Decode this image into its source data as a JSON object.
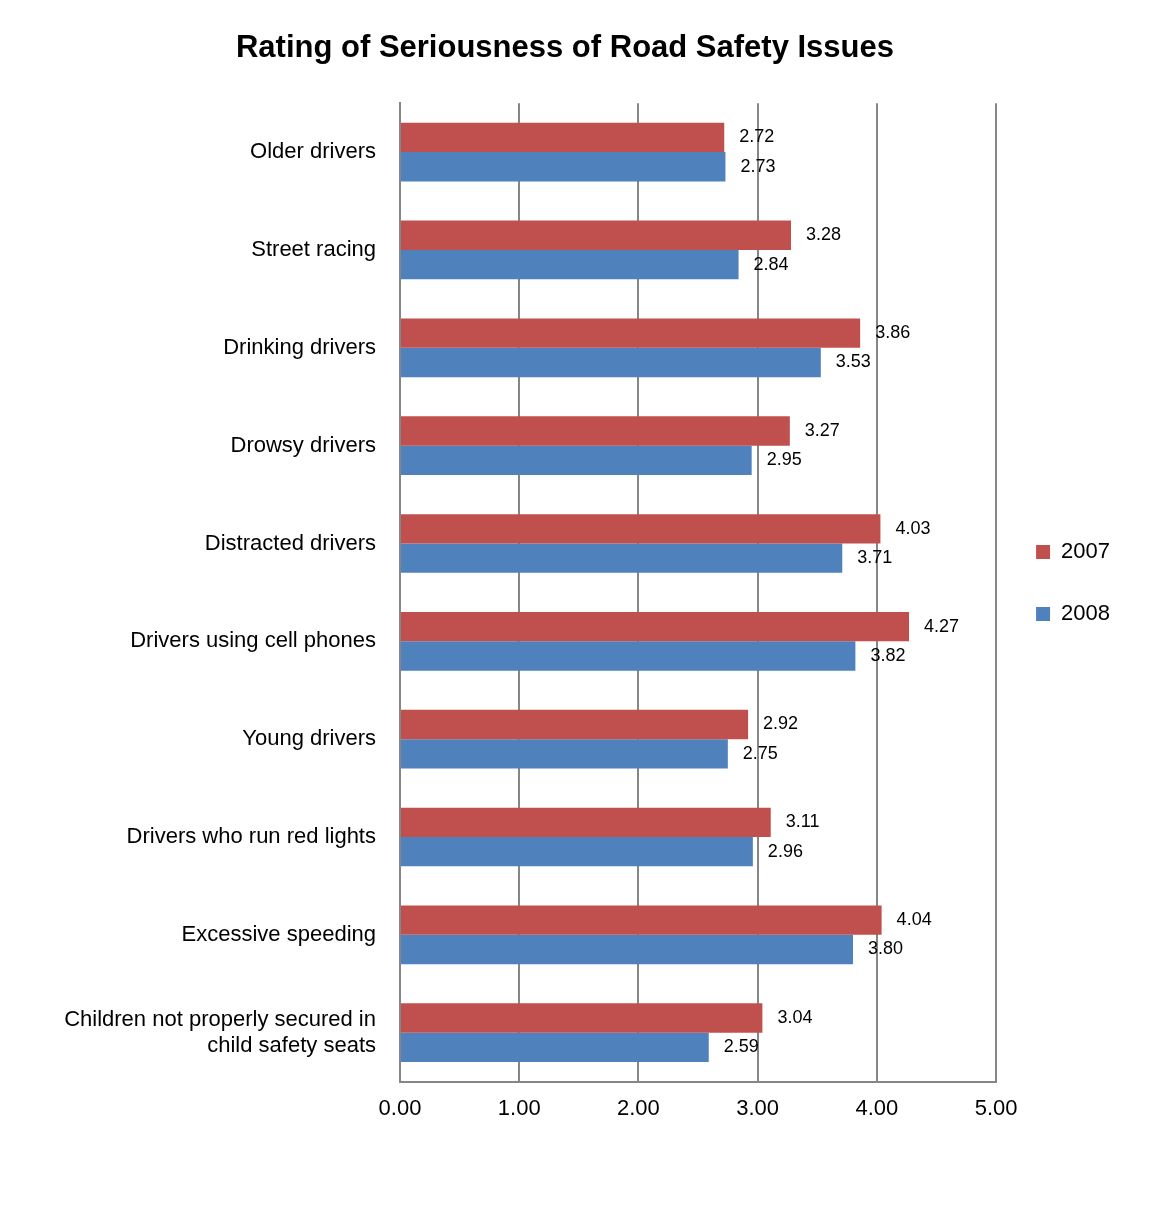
{
  "chart_data": {
    "type": "bar",
    "orientation": "horizontal",
    "title": "Rating of Seriousness of Road Safety Issues",
    "categories": [
      "Older drivers",
      "Street racing",
      "Drinking drivers",
      "Drowsy drivers",
      "Distracted drivers",
      "Drivers using cell phones",
      "Young drivers",
      "Drivers who run red lights",
      "Excessive speeding",
      "Children not properly secured in child safety seats"
    ],
    "series": [
      {
        "name": "2007",
        "color": "#c0504d",
        "values": [
          2.72,
          3.28,
          3.86,
          3.27,
          4.03,
          4.27,
          2.92,
          3.11,
          4.04,
          3.04
        ],
        "value_labels": [
          "2.72",
          "3.28",
          "3.86",
          "3.27",
          "4.03",
          "4.27",
          "2.92",
          "3.11",
          "4.04",
          "3.04"
        ]
      },
      {
        "name": "2008",
        "color": "#4f81bd",
        "values": [
          2.73,
          2.84,
          3.53,
          2.95,
          3.71,
          3.82,
          2.75,
          2.96,
          3.8,
          2.59
        ],
        "value_labels": [
          "2.73",
          "2.84",
          "3.53",
          "2.95",
          "3.71",
          "3.82",
          "2.75",
          "2.96",
          "3.80",
          "2.59"
        ]
      }
    ],
    "xlim": [
      0,
      5
    ],
    "xticks": [
      {
        "value": 0,
        "label": "0.00"
      },
      {
        "value": 1,
        "label": "1.00"
      },
      {
        "value": 2,
        "label": "2.00"
      },
      {
        "value": 3,
        "label": "3.00"
      },
      {
        "value": 4,
        "label": "4.00"
      },
      {
        "value": 5,
        "label": "5.00"
      }
    ],
    "grid": "x",
    "legend": "right"
  }
}
